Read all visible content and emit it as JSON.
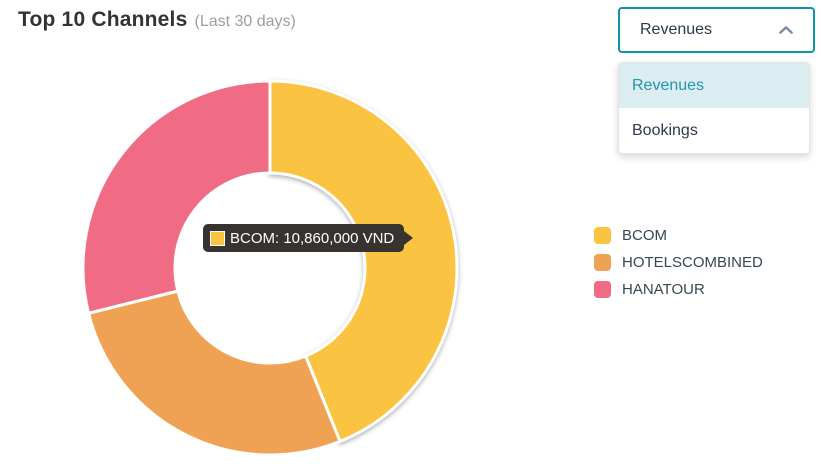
{
  "header": {
    "title": "Top 10 Channels",
    "subtitle": "(Last 30 days)"
  },
  "metric_select": {
    "value": "Revenues",
    "state": "open",
    "options": [
      {
        "label": "Revenues",
        "selected": true
      },
      {
        "label": "Bookings",
        "selected": false
      }
    ]
  },
  "tooltip": {
    "series": "BCOM",
    "text": "BCOM: 10,860,000 VND",
    "value": "10,860,000 VND",
    "swatch_color": "#FBC342"
  },
  "chart_data": {
    "type": "pie",
    "subtype": "donut",
    "title": "Top 10 Channels (Last 30 days)",
    "value_unit": "VND",
    "legend_position": "right",
    "inner_radius_ratio": 0.51,
    "series": [
      {
        "name": "BCOM",
        "color": "#FBC342",
        "value": 10860000,
        "value_label": "10,860,000 VND",
        "percent_est": 43.9,
        "start_angle_deg": 0,
        "end_angle_deg": 158,
        "hovered": true
      },
      {
        "name": "HOTELSCOMBINED",
        "color": "#F0A254",
        "percent_est": 27.2,
        "start_angle_deg": 158,
        "end_angle_deg": 256,
        "hovered": false
      },
      {
        "name": "HANATOUR",
        "color": "#EF6C84",
        "percent_est": 28.9,
        "start_angle_deg": 256,
        "end_angle_deg": 360,
        "hovered": false
      }
    ]
  },
  "colors": {
    "accent": "#0F95A9",
    "title": "#333333",
    "subtitle": "#9E9E9E",
    "text_dark": "#2B3A4D",
    "legend_text": "#37474F",
    "option_selected_bg": "#DCEDF1",
    "option_selected_text": "#2196AC",
    "chevron": "#7B8CA0",
    "tooltip_bg": "#363330",
    "tooltip_text": "#FFFFFF",
    "panel_border": "#E3E3E3"
  }
}
